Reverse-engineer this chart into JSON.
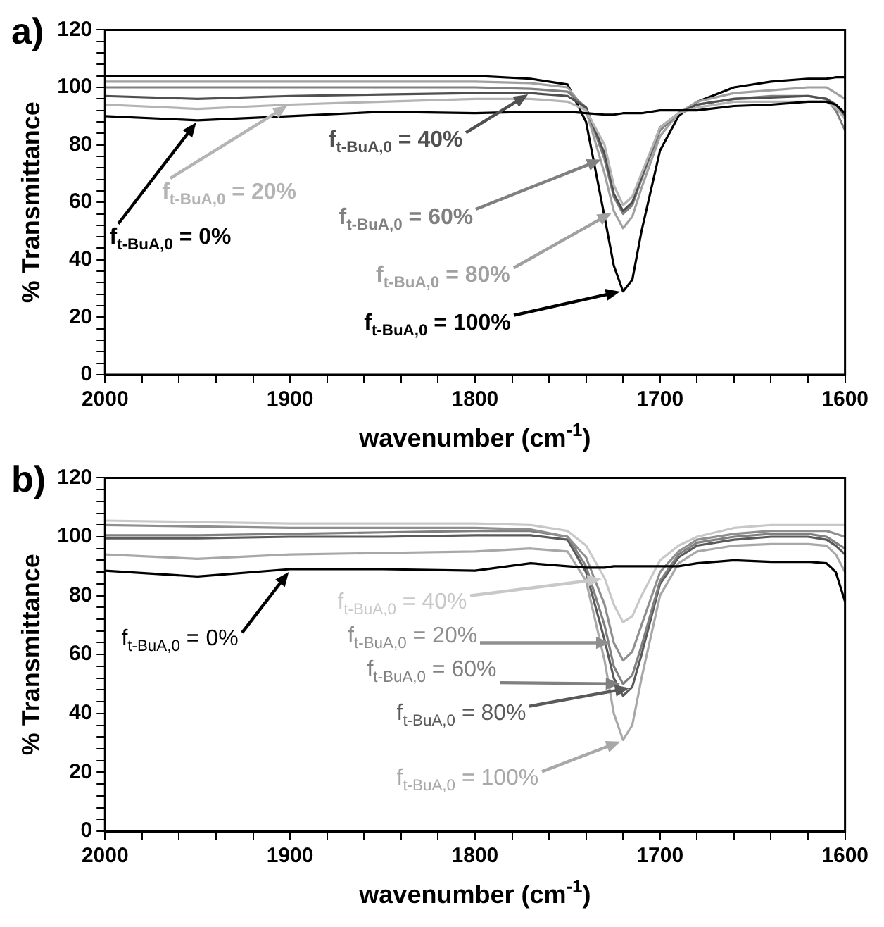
{
  "chart_data": [
    {
      "type": "line",
      "title": "a)",
      "xlabel": "wavenumber (cm$^{-1}$)",
      "ylabel": "% Transmittance",
      "x": [
        2000,
        1950,
        1900,
        1850,
        1800,
        1770,
        1750,
        1740,
        1730,
        1725,
        1720,
        1715,
        1710,
        1700,
        1690,
        1680,
        1660,
        1640,
        1620,
        1610,
        1605,
        1600
      ],
      "series": [
        {
          "name": "f$_{t-BuA,0}$ = 0%",
          "color": "#000000",
          "values": [
            90,
            88.5,
            90,
            91.5,
            91,
            91.5,
            91.5,
            91,
            90.5,
            90.5,
            91,
            91,
            91,
            92,
            92,
            92,
            93.5,
            94,
            95,
            95,
            94,
            91
          ]
        },
        {
          "name": "f$_{t-BuA,0}$ = 20%",
          "color": "#b4b4b4",
          "values": [
            94,
            92.5,
            94,
            95,
            96,
            96,
            95,
            92,
            80,
            66,
            59,
            62,
            70,
            86,
            91,
            93,
            95,
            95,
            95,
            95,
            93,
            89
          ]
        },
        {
          "name": "f$_{t-BuA,0}$ = 40%",
          "color": "#505050",
          "values": [
            97,
            96,
            97,
            97.5,
            98,
            98,
            97,
            93,
            77,
            63,
            57,
            60,
            69,
            86,
            91,
            94,
            96,
            96.5,
            97,
            96,
            94,
            90
          ]
        },
        {
          "name": "f$_{t-BuA,0}$ = 60%",
          "color": "#808080",
          "values": [
            100,
            100,
            100,
            100,
            100,
            99.5,
            98.5,
            93,
            75,
            62,
            56,
            59,
            68,
            85,
            91,
            94,
            96,
            97,
            97,
            96,
            92,
            85
          ]
        },
        {
          "name": "f$_{t-BuA,0}$ = 80%",
          "color": "#a0a0a0",
          "values": [
            102,
            102,
            102,
            102,
            102,
            101.5,
            100,
            92,
            70,
            57,
            51,
            55,
            65,
            83,
            91,
            95,
            98,
            99,
            100,
            100,
            98,
            96
          ]
        },
        {
          "name": "f$_{t-BuA,0}$ = 100%",
          "color": "#000000",
          "values": [
            104,
            104,
            104,
            104,
            104,
            103,
            101,
            88,
            55,
            38,
            29,
            33,
            50,
            78,
            90,
            95,
            100,
            102,
            103,
            103,
            103.5,
            103.5
          ]
        }
      ],
      "xlim": [
        2000,
        1600
      ],
      "xticks": [
        2000,
        {
          "value": 1980,
          "label": null
        },
        {
          "value": 1960,
          "label": null
        },
        {
          "value": 1940,
          "label": null
        },
        {
          "value": 1920,
          "label": null
        },
        1900,
        {
          "value": 1880,
          "label": null
        },
        {
          "value": 1860,
          "label": null
        },
        {
          "value": 1840,
          "label": null
        },
        {
          "value": 1820,
          "label": null
        },
        1800,
        {
          "value": 1780,
          "label": null
        },
        {
          "value": 1760,
          "label": null
        },
        {
          "value": 1740,
          "label": null
        },
        {
          "value": 1720,
          "label": null
        },
        1700,
        {
          "value": 1680,
          "label": null
        },
        {
          "value": 1660,
          "label": null
        },
        {
          "value": 1640,
          "label": null
        },
        {
          "value": 1620,
          "label": null
        },
        1600
      ],
      "ylim": [
        0,
        120
      ],
      "yticks": [
        0,
        {
          "value": 4,
          "label": null
        },
        {
          "value": 8,
          "label": null
        },
        {
          "value": 12,
          "label": null
        },
        {
          "value": 16,
          "label": null
        },
        20,
        {
          "value": 24,
          "label": null
        },
        {
          "value": 28,
          "label": null
        },
        {
          "value": 32,
          "label": null
        },
        {
          "value": 36,
          "label": null
        },
        40,
        {
          "value": 44,
          "label": null
        },
        {
          "value": 48,
          "label": null
        },
        {
          "value": 52,
          "label": null
        },
        {
          "value": 56,
          "label": null
        },
        60,
        {
          "value": 64,
          "label": null
        },
        {
          "value": 68,
          "label": null
        },
        {
          "value": 72,
          "label": null
        },
        {
          "value": 76,
          "label": null
        },
        80,
        {
          "value": 84,
          "label": null
        },
        {
          "value": 88,
          "label": null
        },
        {
          "value": 92,
          "label": null
        },
        {
          "value": 96,
          "label": null
        },
        100,
        {
          "value": 104,
          "label": null
        },
        {
          "value": 108,
          "label": null
        },
        {
          "value": 112,
          "label": null
        },
        {
          "value": 116,
          "label": null
        },
        120
      ]
    },
    {
      "type": "line",
      "title": "b)",
      "xlabel": "wavenumber (cm$^{-1}$)",
      "ylabel": "% Transmittance",
      "x": [
        2000,
        1950,
        1900,
        1850,
        1800,
        1770,
        1750,
        1740,
        1730,
        1725,
        1720,
        1715,
        1710,
        1700,
        1690,
        1680,
        1660,
        1640,
        1620,
        1610,
        1605,
        1600
      ],
      "series": [
        {
          "name": "f$_{t-BuA,0}$ = 0%",
          "color": "#000000",
          "values": [
            88.5,
            86.5,
            89,
            89,
            88.5,
            91,
            90,
            89.5,
            89.5,
            90,
            90,
            90,
            90,
            90,
            90,
            91,
            92,
            91.5,
            91.5,
            91,
            88,
            78
          ]
        },
        {
          "name": "f$_{t-BuA,0}$ = 20%",
          "color": "#8f8f8f",
          "values": [
            104,
            103.5,
            103,
            103,
            103,
            102.5,
            100,
            93,
            77,
            64,
            58,
            61,
            70,
            88,
            95,
            99,
            101,
            102,
            102,
            102,
            101,
            100
          ]
        },
        {
          "name": "f$_{t-BuA,0}$ = 40%",
          "color": "#c8c8c8",
          "values": [
            105.5,
            105,
            104.5,
            104.5,
            104.5,
            104,
            102,
            97,
            86,
            77,
            71,
            73,
            80,
            92,
            97,
            100,
            103,
            104,
            104,
            104,
            104,
            104
          ]
        },
        {
          "name": "f$_{t-BuA,0}$ = 60%",
          "color": "#808080",
          "values": [
            100.5,
            100.5,
            101,
            101.5,
            102,
            102,
            100,
            90,
            70,
            56,
            50,
            53,
            63,
            85,
            94,
            98,
            100,
            101,
            101,
            100,
            98,
            96
          ]
        },
        {
          "name": "f$_{t-BuA,0}$ = 80%",
          "color": "#5a5a5a",
          "values": [
            99.5,
            99.5,
            100,
            100,
            100.5,
            100.5,
            99,
            88,
            65,
            52,
            46,
            49,
            60,
            84,
            93,
            97,
            99,
            100,
            100,
            99,
            97,
            94
          ]
        },
        {
          "name": "f$_{t-BuA,0}$ = 100%",
          "color": "#a8a8a8",
          "values": [
            94,
            92.5,
            94,
            94.5,
            95,
            96,
            95,
            85,
            58,
            40,
            31,
            36,
            52,
            80,
            91,
            95,
            97,
            97.5,
            97.5,
            97,
            94,
            88
          ]
        }
      ],
      "xlim": [
        2000,
        1600
      ],
      "xticks": [
        2000,
        {
          "value": 1980,
          "label": null
        },
        {
          "value": 1960,
          "label": null
        },
        {
          "value": 1940,
          "label": null
        },
        {
          "value": 1920,
          "label": null
        },
        1900,
        {
          "value": 1880,
          "label": null
        },
        {
          "value": 1860,
          "label": null
        },
        {
          "value": 1840,
          "label": null
        },
        {
          "value": 1820,
          "label": null
        },
        1800,
        {
          "value": 1780,
          "label": null
        },
        {
          "value": 1760,
          "label": null
        },
        {
          "value": 1740,
          "label": null
        },
        {
          "value": 1720,
          "label": null
        },
        1700,
        {
          "value": 1680,
          "label": null
        },
        {
          "value": 1660,
          "label": null
        },
        {
          "value": 1640,
          "label": null
        },
        {
          "value": 1620,
          "label": null
        },
        1600
      ],
      "ylim": [
        0,
        120
      ],
      "yticks": [
        0,
        {
          "value": 4,
          "label": null
        },
        {
          "value": 8,
          "label": null
        },
        {
          "value": 12,
          "label": null
        },
        {
          "value": 16,
          "label": null
        },
        20,
        {
          "value": 24,
          "label": null
        },
        {
          "value": 28,
          "label": null
        },
        {
          "value": 32,
          "label": null
        },
        {
          "value": 36,
          "label": null
        },
        40,
        {
          "value": 44,
          "label": null
        },
        {
          "value": 48,
          "label": null
        },
        {
          "value": 52,
          "label": null
        },
        {
          "value": 56,
          "label": null
        },
        60,
        {
          "value": 64,
          "label": null
        },
        {
          "value": 68,
          "label": null
        },
        {
          "value": 72,
          "label": null
        },
        {
          "value": 76,
          "label": null
        },
        80,
        {
          "value": 84,
          "label": null
        },
        {
          "value": 88,
          "label": null
        },
        {
          "value": 92,
          "label": null
        },
        {
          "value": 96,
          "label": null
        },
        100,
        {
          "value": 104,
          "label": null
        },
        {
          "value": 108,
          "label": null
        },
        {
          "value": 112,
          "label": null
        },
        {
          "value": 116,
          "label": null
        },
        120
      ]
    }
  ]
}
